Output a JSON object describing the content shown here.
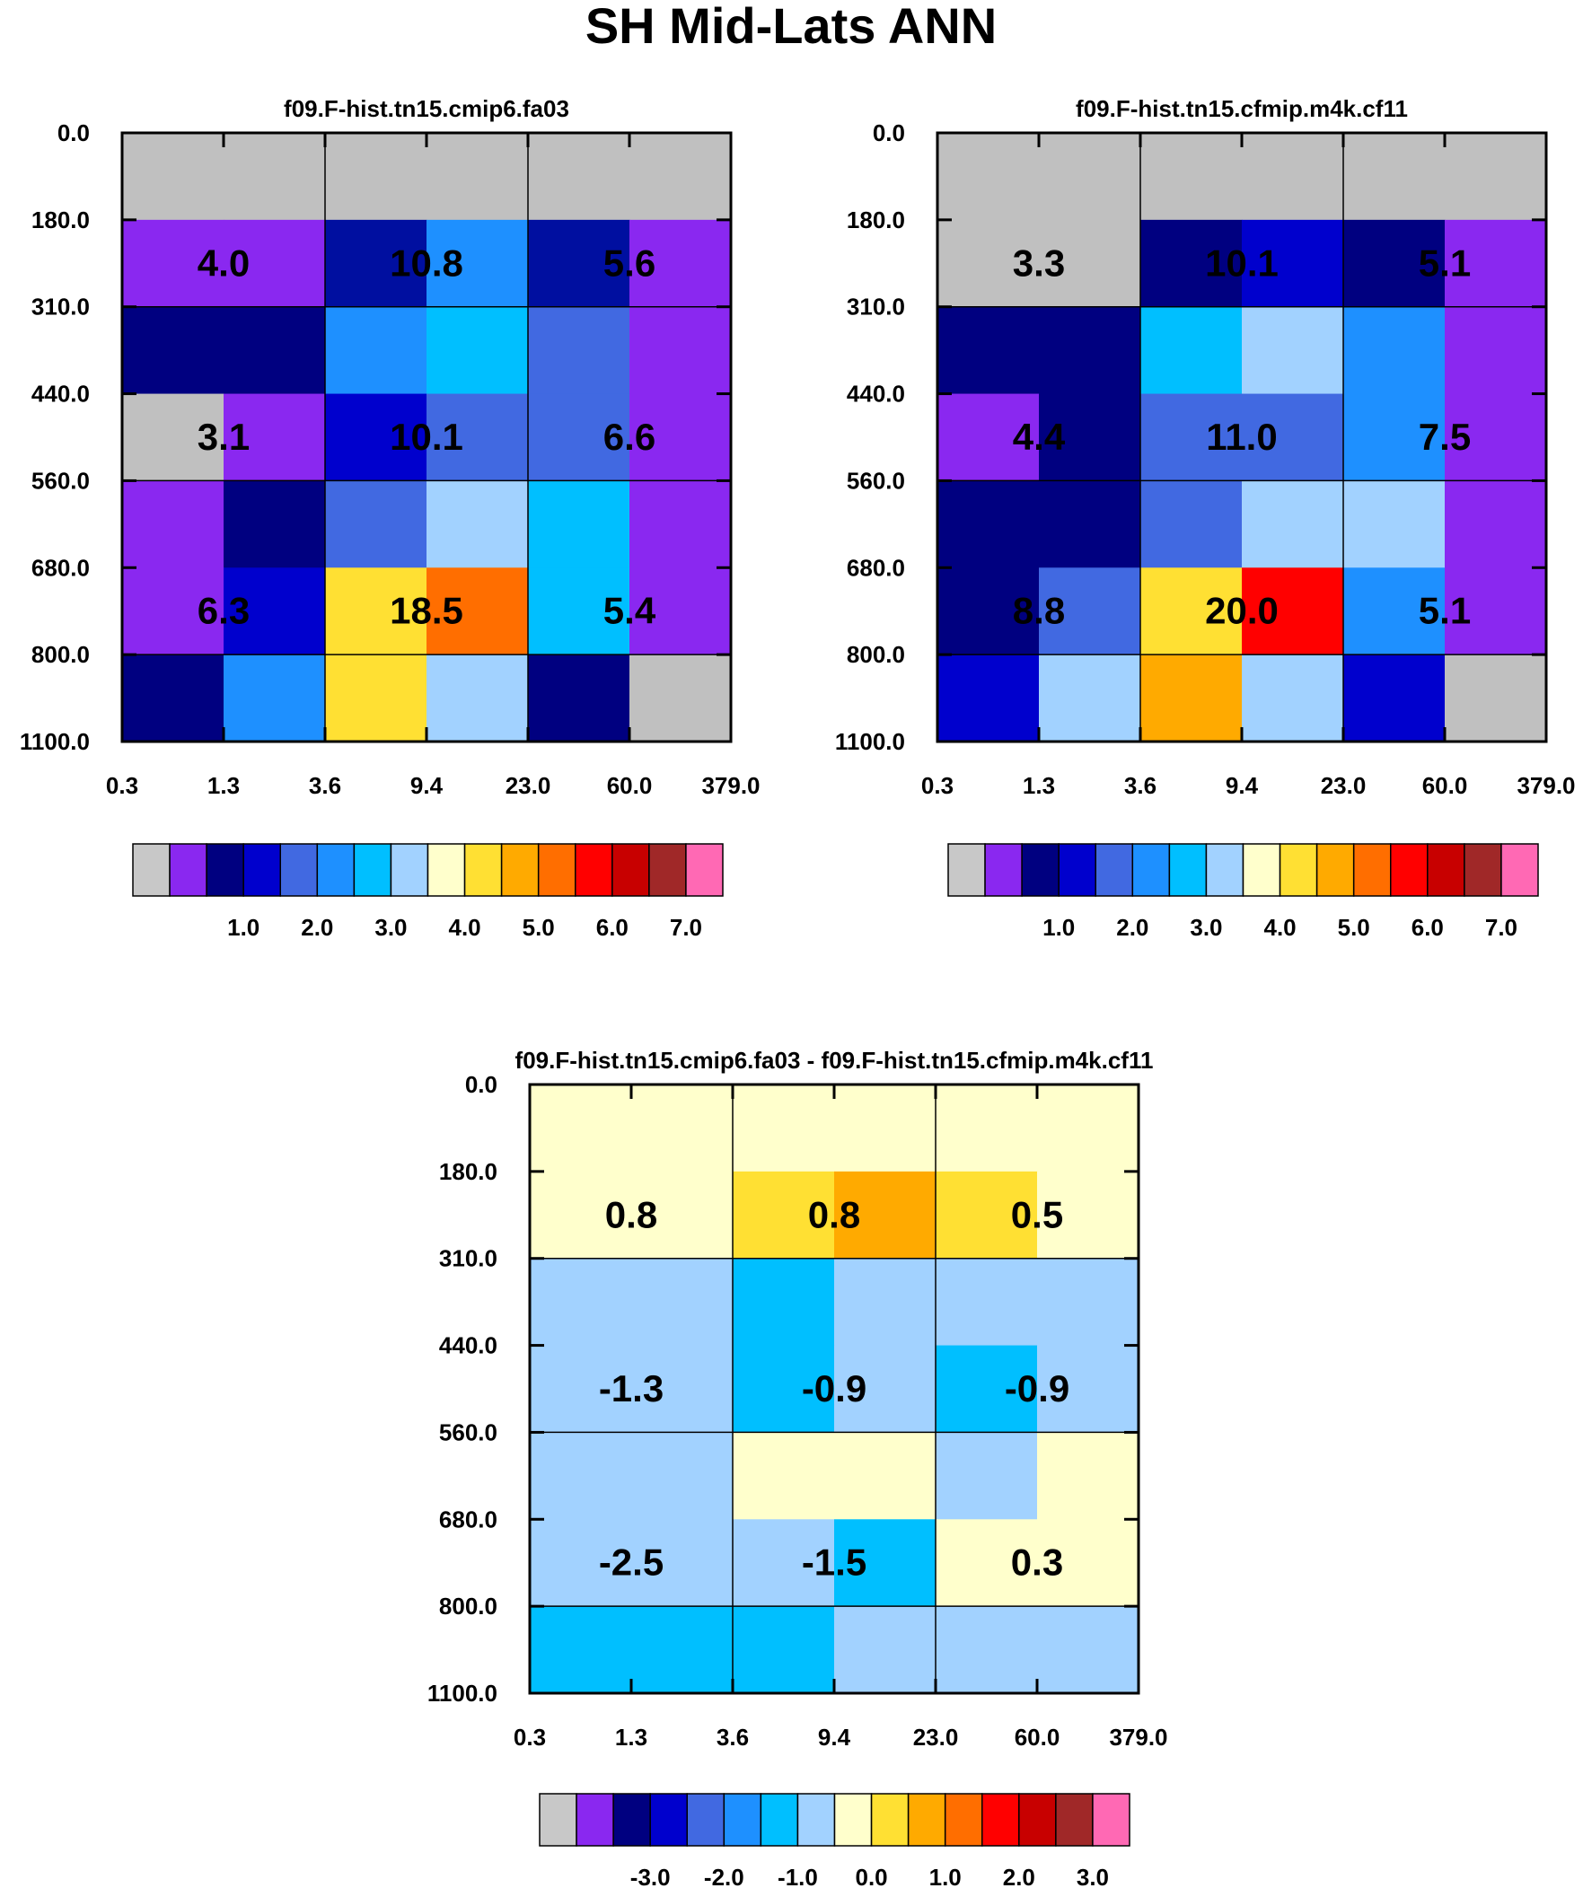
{
  "figure_title": "SH Mid-Lats ANN",
  "chart_data": [
    {
      "type": "heatmap",
      "title": "f09.F-hist.tn15.cmip6.fa03",
      "x_ticks": [
        "0.3",
        "1.3",
        "3.6",
        "9.4",
        "23.0",
        "60.0",
        "379.0"
      ],
      "y_ticks": [
        "0.0",
        "180.0",
        "310.0",
        "440.0",
        "560.0",
        "680.0",
        "800.0",
        "1100.0"
      ],
      "cell_colors": [
        [
          "#c0c0c0",
          "#c0c0c0",
          "#c0c0c0",
          "#c0c0c0",
          "#c0c0c0",
          "#c0c0c0"
        ],
        [
          "#8a28f0",
          "#8a28f0",
          "#000fa0",
          "#1e90ff",
          "#000fa0",
          "#8a28f0"
        ],
        [
          "#000080",
          "#000080",
          "#1e90ff",
          "#00bfff",
          "#4169e1",
          "#8a28f0"
        ],
        [
          "#c0c0c0",
          "#8a28f0",
          "#0000cd",
          "#4169e1",
          "#4169e1",
          "#8a28f0"
        ],
        [
          "#8a28f0",
          "#000080",
          "#4169e1",
          "#a2d2ff",
          "#00bfff",
          "#8a28f0"
        ],
        [
          "#8a28f0",
          "#0000cd",
          "#ffe033",
          "#ff6e00",
          "#00bfff",
          "#8a28f0"
        ],
        [
          "#000080",
          "#1e90ff",
          "#ffe033",
          "#a2d2ff",
          "#000080",
          "#c0c0c0"
        ]
      ],
      "totals": [
        [
          "4.0",
          "10.8",
          "5.6"
        ],
        [
          "3.1",
          "10.1",
          "6.6"
        ],
        [
          "6.3",
          "18.5",
          "5.4"
        ]
      ],
      "colorbar": {
        "colors": [
          "#c8c8c8",
          "#8a28f0",
          "#000080",
          "#0000cd",
          "#4169e1",
          "#1e90ff",
          "#00bfff",
          "#a2d2ff",
          "#ffffcc",
          "#ffe033",
          "#ffaa00",
          "#ff6e00",
          "#ff0000",
          "#c80000",
          "#a02828",
          "#ff69b4"
        ],
        "labels": [
          "1.0",
          "2.0",
          "3.0",
          "4.0",
          "5.0",
          "6.0",
          "7.0"
        ]
      }
    },
    {
      "type": "heatmap",
      "title": "f09.F-hist.tn15.cfmip.m4k.cf11",
      "x_ticks": [
        "0.3",
        "1.3",
        "3.6",
        "9.4",
        "23.0",
        "60.0",
        "379.0"
      ],
      "y_ticks": [
        "0.0",
        "180.0",
        "310.0",
        "440.0",
        "560.0",
        "680.0",
        "800.0",
        "1100.0"
      ],
      "cell_colors": [
        [
          "#c0c0c0",
          "#c0c0c0",
          "#c0c0c0",
          "#c0c0c0",
          "#c0c0c0",
          "#c0c0c0"
        ],
        [
          "#c0c0c0",
          "#c0c0c0",
          "#000080",
          "#0000cd",
          "#000080",
          "#8a28f0"
        ],
        [
          "#000080",
          "#000080",
          "#00bfff",
          "#a2d2ff",
          "#1e90ff",
          "#8a28f0"
        ],
        [
          "#8a28f0",
          "#000080",
          "#4169e1",
          "#4169e1",
          "#1e90ff",
          "#8a28f0"
        ],
        [
          "#000080",
          "#000080",
          "#4169e1",
          "#a2d2ff",
          "#a2d2ff",
          "#8a28f0"
        ],
        [
          "#000080",
          "#4169e1",
          "#ffe033",
          "#ff0000",
          "#1e90ff",
          "#8a28f0"
        ],
        [
          "#0000cd",
          "#a2d2ff",
          "#ffaa00",
          "#a2d2ff",
          "#0000cd",
          "#c0c0c0"
        ]
      ],
      "totals": [
        [
          "3.3",
          "10.1",
          "5.1"
        ],
        [
          "4.4",
          "11.0",
          "7.5"
        ],
        [
          "8.8",
          "20.0",
          "5.1"
        ]
      ],
      "colorbar": {
        "colors": [
          "#c8c8c8",
          "#8a28f0",
          "#000080",
          "#0000cd",
          "#4169e1",
          "#1e90ff",
          "#00bfff",
          "#a2d2ff",
          "#ffffcc",
          "#ffe033",
          "#ffaa00",
          "#ff6e00",
          "#ff0000",
          "#c80000",
          "#a02828",
          "#ff69b4"
        ],
        "labels": [
          "1.0",
          "2.0",
          "3.0",
          "4.0",
          "5.0",
          "6.0",
          "7.0"
        ]
      }
    },
    {
      "type": "heatmap",
      "title": "f09.F-hist.tn15.cmip6.fa03 - f09.F-hist.tn15.cfmip.m4k.cf11",
      "x_ticks": [
        "0.3",
        "1.3",
        "3.6",
        "9.4",
        "23.0",
        "60.0",
        "379.0"
      ],
      "y_ticks": [
        "0.0",
        "180.0",
        "310.0",
        "440.0",
        "560.0",
        "680.0",
        "800.0",
        "1100.0"
      ],
      "cell_colors": [
        [
          "#ffffcc",
          "#ffffcc",
          "#ffffcc",
          "#ffffcc",
          "#ffffcc",
          "#ffffcc"
        ],
        [
          "#ffffcc",
          "#ffffcc",
          "#ffe033",
          "#ffaa00",
          "#ffe033",
          "#ffffcc"
        ],
        [
          "#a2d2ff",
          "#a2d2ff",
          "#00bfff",
          "#a2d2ff",
          "#a2d2ff",
          "#a2d2ff"
        ],
        [
          "#a2d2ff",
          "#a2d2ff",
          "#00bfff",
          "#a2d2ff",
          "#00bfff",
          "#a2d2ff"
        ],
        [
          "#a2d2ff",
          "#a2d2ff",
          "#ffffcc",
          "#ffffcc",
          "#a2d2ff",
          "#ffffcc"
        ],
        [
          "#a2d2ff",
          "#a2d2ff",
          "#a2d2ff",
          "#00bfff",
          "#ffffcc",
          "#ffffcc"
        ],
        [
          "#00bfff",
          "#00bfff",
          "#00bfff",
          "#a2d2ff",
          "#a2d2ff",
          "#a2d2ff"
        ]
      ],
      "totals": [
        [
          "0.8",
          "0.8",
          "0.5"
        ],
        [
          "-1.3",
          "-0.9",
          "-0.9"
        ],
        [
          "-2.5",
          "-1.5",
          "0.3"
        ]
      ],
      "colorbar": {
        "colors": [
          "#c8c8c8",
          "#8a28f0",
          "#000080",
          "#0000cd",
          "#4169e1",
          "#1e90ff",
          "#00bfff",
          "#a2d2ff",
          "#ffffcc",
          "#ffe033",
          "#ffaa00",
          "#ff6e00",
          "#ff0000",
          "#c80000",
          "#a02828",
          "#ff69b4"
        ],
        "labels": [
          "-3.0",
          "-2.0",
          "-1.0",
          "0.0",
          "1.0",
          "2.0",
          "3.0"
        ]
      }
    }
  ]
}
